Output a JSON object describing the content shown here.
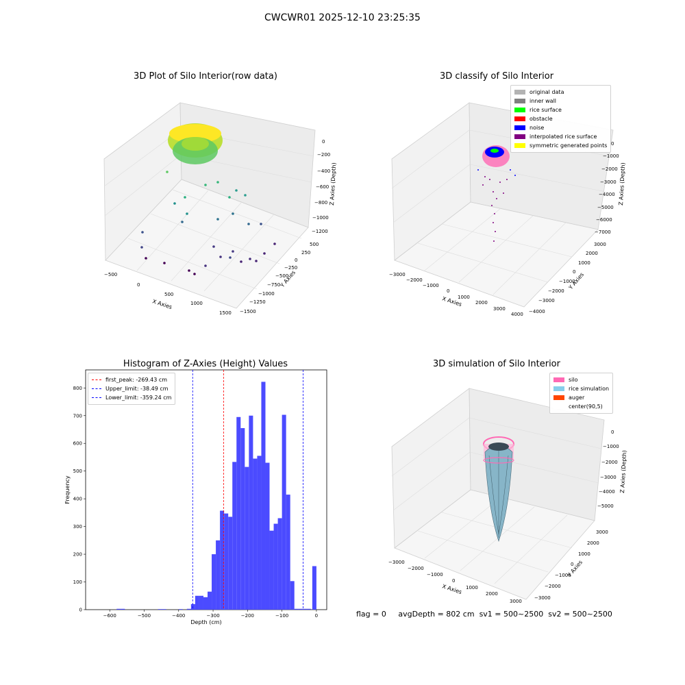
{
  "suptitle": "CWCWR01 2025-12-10 23:25:35",
  "panel1": {
    "title": "3D Plot of Silo Interior(row data)",
    "xlabel": "X Axies",
    "ylabel": "Y Axies",
    "zlabel": "Z Axies (Depth)",
    "xticks": [
      "−500",
      "0",
      "500",
      "1000",
      "1500"
    ],
    "yticks": [
      "500",
      "250",
      "0",
      "−250",
      "−500",
      "−750",
      "−1000",
      "−1250",
      "−1500"
    ],
    "zticks": [
      "0",
      "−200",
      "−400",
      "−600",
      "−800",
      "−1000",
      "−1200"
    ]
  },
  "panel2": {
    "title": "3D classify of Silo Interior",
    "xlabel": "X Axies",
    "ylabel": "Y Axies",
    "zlabel": "Z Axies (Depth)",
    "xticks": [
      "−3000",
      "−2000",
      "−1000",
      "0",
      "1000",
      "2000",
      "3000",
      "4000"
    ],
    "yticks": [
      "3000",
      "2000",
      "1000",
      "0",
      "−1000",
      "−2000",
      "−3000",
      "−4000"
    ],
    "zticks": [
      "0",
      "−1000",
      "−2000",
      "−3000",
      "−4000",
      "−5000",
      "−6000",
      "−7000"
    ],
    "legend": [
      {
        "label": "original data",
        "color": "#b3b3b3"
      },
      {
        "label": "inner wall",
        "color": "#808080"
      },
      {
        "label": "rice surface",
        "color": "#00ff00"
      },
      {
        "label": "obstacle",
        "color": "#ff0000"
      },
      {
        "label": "noise",
        "color": "#0000ff"
      },
      {
        "label": "interpolated rice surface",
        "color": "#800080"
      },
      {
        "label": "symmetric generated points",
        "color": "#ffff00"
      }
    ]
  },
  "panel3": {
    "title": "Histogram of Z-Axies (Height) Values",
    "legend": [
      {
        "label": "first_peak: -269.43 cm",
        "color": "#ff0000"
      },
      {
        "label": "Upper_limit: -38.49 cm",
        "color": "#0000ff"
      },
      {
        "label": "Lower_limit: -359.24 cm",
        "color": "#0000ff"
      }
    ]
  },
  "panel4": {
    "title": "3D simulation of Silo Interior",
    "xlabel": "X Axies",
    "ylabel": "Y Axies",
    "zlabel": "Z Axies (Depth)",
    "xticks": [
      "−3000",
      "−2000",
      "−1000",
      "0",
      "1000",
      "2000",
      "3000"
    ],
    "yticks": [
      "3000",
      "2000",
      "1000",
      "0",
      "−1000",
      "−2000",
      "−3000"
    ],
    "zticks": [
      "0",
      "−1000",
      "−2000",
      "−3000",
      "−4000",
      "−5000"
    ],
    "legend": [
      {
        "label": "silo",
        "color": "#ff69b4"
      },
      {
        "label": "rice simulation",
        "color": "#87ceeb"
      },
      {
        "label": "auger",
        "color": "#ff4500"
      },
      {
        "label": "center(90,5)",
        "color": "#ffffff"
      }
    ]
  },
  "status": {
    "flag": "flag = 0",
    "avg": "avgDepth = 802 cm",
    "sv1": "sv1 = 500~2500",
    "sv2": "sv2 = 500~2500"
  },
  "chart_data": {
    "type": "bar",
    "title": "Histogram of Z-Axies (Height) Values",
    "xlabel": "Depth (cm)",
    "ylabel": "Frequency",
    "xlim": [
      -670,
      30
    ],
    "ylim": [
      0,
      865
    ],
    "xticks": [
      -600,
      -500,
      -400,
      -300,
      -200,
      -100,
      0
    ],
    "yticks": [
      0,
      100,
      200,
      300,
      400,
      500,
      600,
      700,
      800
    ],
    "bin_width": 12,
    "bins": [
      {
        "x0": -580,
        "count": 3
      },
      {
        "x0": -568,
        "count": 3
      },
      {
        "x0": -460,
        "count": 2
      },
      {
        "x0": -448,
        "count": 2
      },
      {
        "x0": -400,
        "count": 2
      },
      {
        "x0": -376,
        "count": 3
      },
      {
        "x0": -364,
        "count": 20
      },
      {
        "x0": -352,
        "count": 50
      },
      {
        "x0": -340,
        "count": 50
      },
      {
        "x0": -328,
        "count": 45
      },
      {
        "x0": -316,
        "count": 65
      },
      {
        "x0": -304,
        "count": 200
      },
      {
        "x0": -292,
        "count": 250
      },
      {
        "x0": -280,
        "count": 357
      },
      {
        "x0": -268,
        "count": 347
      },
      {
        "x0": -256,
        "count": 335
      },
      {
        "x0": -244,
        "count": 533
      },
      {
        "x0": -232,
        "count": 695
      },
      {
        "x0": -220,
        "count": 655
      },
      {
        "x0": -208,
        "count": 515
      },
      {
        "x0": -196,
        "count": 700
      },
      {
        "x0": -184,
        "count": 545
      },
      {
        "x0": -172,
        "count": 555
      },
      {
        "x0": -160,
        "count": 822
      },
      {
        "x0": -148,
        "count": 530
      },
      {
        "x0": -136,
        "count": 285
      },
      {
        "x0": -124,
        "count": 310
      },
      {
        "x0": -112,
        "count": 330
      },
      {
        "x0": -100,
        "count": 703
      },
      {
        "x0": -88,
        "count": 415
      },
      {
        "x0": -76,
        "count": 103
      },
      {
        "x0": -64,
        "count": 3
      },
      {
        "x0": -52,
        "count": 3
      },
      {
        "x0": -40,
        "count": 3
      },
      {
        "x0": -28,
        "count": 3
      },
      {
        "x0": -12,
        "count": 157
      }
    ],
    "vlines": [
      {
        "name": "first_peak",
        "x": -269.43,
        "color": "#ff0000"
      },
      {
        "name": "Upper_limit",
        "x": -38.49,
        "color": "#0000ff"
      },
      {
        "name": "Lower_limit",
        "x": -359.24,
        "color": "#0000ff"
      }
    ],
    "bar_color": "#4b4bff"
  }
}
